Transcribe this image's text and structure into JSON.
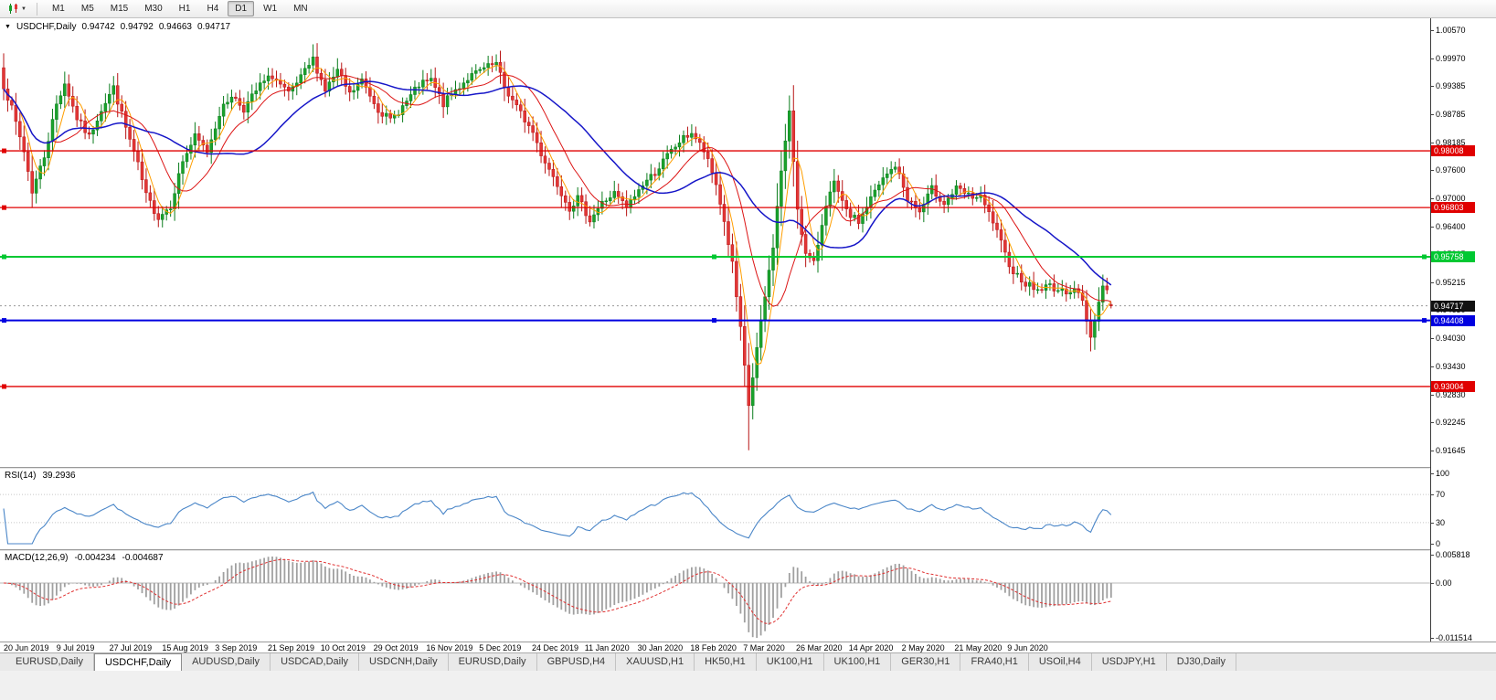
{
  "toolbar": {
    "timeframes": [
      "M1",
      "M5",
      "M15",
      "M30",
      "H1",
      "H4",
      "D1",
      "W1",
      "MN"
    ],
    "active_timeframe": "D1"
  },
  "chart": {
    "title": "USDCHF,Daily",
    "open": "0.94742",
    "high": "0.94792",
    "low": "0.94663",
    "close": "0.94717",
    "price_axis": [
      "1.00570",
      "0.99970",
      "0.99385",
      "0.98785",
      "0.98185",
      "0.97600",
      "0.97000",
      "0.96400",
      "0.95815",
      "0.95215",
      "0.94630",
      "0.94030",
      "0.93430",
      "0.92830",
      "0.92245",
      "0.91645"
    ],
    "date_axis": [
      "20 Jun 2019",
      "9 Jul 2019",
      "27 Jul 2019",
      "15 Aug 2019",
      "3 Sep 2019",
      "21 Sep 2019",
      "10 Oct 2019",
      "29 Oct 2019",
      "16 Nov 2019",
      "5 Dec 2019",
      "24 Dec 2019",
      "11 Jan 2020",
      "30 Jan 2020",
      "18 Feb 2020",
      "7 Mar 2020",
      "26 Mar 2020",
      "14 Apr 2020",
      "2 May 2020",
      "21 May 2020",
      "9 Jun 2020"
    ],
    "levels": [
      {
        "label": "0.98008",
        "price": 0.98008,
        "color": "#e00000",
        "width": 1.3,
        "handles": "left"
      },
      {
        "label": "0.96803",
        "price": 0.96803,
        "color": "#e00000",
        "width": 1.3,
        "handles": "left"
      },
      {
        "label": "0.95758",
        "price": 0.95758,
        "color": "#00c832",
        "width": 2,
        "handles": "all"
      },
      {
        "label": "0.94408",
        "price": 0.94408,
        "color": "#0000e0",
        "width": 2,
        "handles": "all"
      },
      {
        "label": "0.93004",
        "price": 0.93004,
        "color": "#e00000",
        "width": 1.3,
        "handles": "left"
      }
    ],
    "current_price": {
      "label": "0.94717",
      "price": 0.94717,
      "color": "#111111"
    }
  },
  "rsi": {
    "label": "RSI(14)",
    "value": "39.2936",
    "axis": [
      "100",
      "70",
      "30",
      "0"
    ],
    "levels": [
      70,
      30
    ],
    "color": "#4a86c8"
  },
  "macd": {
    "label": "MACD(12,26,9)",
    "main_value": "-0.004234",
    "signal_value": "-0.004687",
    "axis": [
      "0.005818",
      "0.00",
      "-0.011514"
    ],
    "hist_color": "#a0a0a0",
    "signal_color": "#e03030"
  },
  "tabs": {
    "items": [
      "EURUSD,Daily",
      "USDCHF,Daily",
      "AUDUSD,Daily",
      "USDCAD,Daily",
      "USDCNH,Daily",
      "EURUSD,Daily",
      "GBPUSD,H4",
      "XAUUSD,H1",
      "HK50,H1",
      "UK100,H1",
      "UK100,H1",
      "GER30,H1",
      "FRA40,H1",
      "USOil,H4",
      "USDJPY,H1",
      "DJ30,Daily"
    ],
    "active_index": 1
  },
  "chart_data": {
    "type": "candlestick",
    "symbol": "USDCHF",
    "timeframe": "Daily",
    "y_range": [
      0.91645,
      1.0057
    ],
    "num_candles": 273,
    "last_candle": {
      "open": 0.94742,
      "high": 0.94792,
      "low": 0.94663,
      "close": 0.94717
    },
    "price_path": [
      [
        0,
        0.994
      ],
      [
        2,
        0.989
      ],
      [
        5,
        0.98
      ],
      [
        7,
        0.9715
      ],
      [
        10,
        0.979
      ],
      [
        13,
        0.99
      ],
      [
        15,
        0.9945
      ],
      [
        18,
        0.987
      ],
      [
        21,
        0.983
      ],
      [
        24,
        0.989
      ],
      [
        27,
        0.9935
      ],
      [
        30,
        0.985
      ],
      [
        33,
        0.977
      ],
      [
        35,
        0.9705
      ],
      [
        38,
        0.966
      ],
      [
        41,
        0.9685
      ],
      [
        44,
        0.978
      ],
      [
        47,
        0.983
      ],
      [
        50,
        0.98
      ],
      [
        53,
        0.988
      ],
      [
        56,
        0.992
      ],
      [
        59,
        0.989
      ],
      [
        63,
        0.994
      ],
      [
        66,
        0.996
      ],
      [
        70,
        0.992
      ],
      [
        73,
        0.9955
      ],
      [
        76,
        0.9995
      ],
      [
        79,
        0.993
      ],
      [
        82,
        0.997
      ],
      [
        85,
        0.992
      ],
      [
        88,
        0.995
      ],
      [
        92,
        0.989
      ],
      [
        95,
        0.9865
      ],
      [
        99,
        0.9905
      ],
      [
        102,
        0.994
      ],
      [
        105,
        0.995
      ],
      [
        108,
        0.99
      ],
      [
        111,
        0.993
      ],
      [
        114,
        0.9955
      ],
      [
        118,
        0.9975
      ],
      [
        121,
        0.9985
      ],
      [
        123,
        0.9935
      ],
      [
        127,
        0.988
      ],
      [
        130,
        0.984
      ],
      [
        132,
        0.9795
      ],
      [
        136,
        0.973
      ],
      [
        139,
        0.968
      ],
      [
        141,
        0.97
      ],
      [
        144,
        0.9655
      ],
      [
        147,
        0.969
      ],
      [
        150,
        0.971
      ],
      [
        153,
        0.968
      ],
      [
        157,
        0.973
      ],
      [
        160,
        0.9755
      ],
      [
        163,
        0.979
      ],
      [
        166,
        0.982
      ],
      [
        169,
        0.984
      ],
      [
        172,
        0.98
      ],
      [
        175,
        0.973
      ],
      [
        177,
        0.965
      ],
      [
        179,
        0.956
      ],
      [
        181,
        0.942
      ],
      [
        183,
        0.926
      ],
      [
        185,
        0.938
      ],
      [
        187,
        0.949
      ],
      [
        189,
        0.96
      ],
      [
        191,
        0.976
      ],
      [
        193,
        0.988
      ],
      [
        195,
        0.968
      ],
      [
        197,
        0.958
      ],
      [
        199,
        0.956
      ],
      [
        202,
        0.969
      ],
      [
        204,
        0.973
      ],
      [
        207,
        0.967
      ],
      [
        210,
        0.965
      ],
      [
        213,
        0.97
      ],
      [
        216,
        0.974
      ],
      [
        219,
        0.977
      ],
      [
        222,
        0.97
      ],
      [
        225,
        0.967
      ],
      [
        228,
        0.972
      ],
      [
        231,
        0.969
      ],
      [
        234,
        0.972
      ],
      [
        237,
        0.9705
      ],
      [
        240,
        0.97
      ],
      [
        243,
        0.965
      ],
      [
        246,
        0.958
      ],
      [
        248,
        0.9545
      ],
      [
        251,
        0.952
      ],
      [
        254,
        0.9505
      ],
      [
        257,
        0.9515
      ],
      [
        260,
        0.95
      ],
      [
        263,
        0.951
      ],
      [
        265,
        0.948
      ],
      [
        267,
        0.9405
      ],
      [
        268,
        0.9445
      ],
      [
        269,
        0.948
      ],
      [
        270,
        0.9515
      ],
      [
        271,
        0.9505
      ],
      [
        272,
        0.94717
      ]
    ],
    "key_extremes": [
      {
        "i": 7,
        "low": 0.9693
      },
      {
        "i": 76,
        "high": 1.0027
      },
      {
        "i": 121,
        "high": 1.0005
      },
      {
        "i": 183,
        "low": 0.9165
      },
      {
        "i": 193,
        "high": 0.9901
      },
      {
        "i": 267,
        "low": 0.9375
      }
    ],
    "indicators": {
      "ma_periods": [
        5,
        13,
        30
      ],
      "rsi_period": 14,
      "macd_params": [
        12,
        26,
        9
      ]
    },
    "colors": {
      "bull": "#1aa22c",
      "bull_border": "#0b7d1d",
      "bear": "#e23636",
      "bear_border": "#b81414",
      "ma_fast": "#ff9e00",
      "ma_mid": "#dc1414",
      "ma_slow": "#1616c8"
    }
  }
}
